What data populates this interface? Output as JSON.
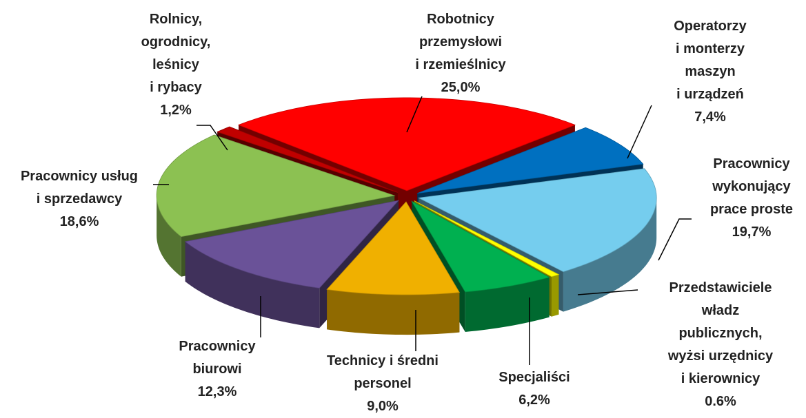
{
  "chart_data": {
    "type": "pie",
    "categories": [
      "Robotnicy\nprzemysłowi\ni rzemieślnicy",
      "Operatorzy\ni monterzy\nmaszyn\ni urządzeń",
      "Pracownicy\nwykonujący\nprace proste",
      "Przedstawiciele\nwładz\npublicznych,\nwyżsi urzędnicy\ni kierownicy",
      "Specjaliści",
      "Technicy i średni\npersonel",
      "Pracownicy\nbiurowi",
      "Pracownicy usług\ni sprzedawcy",
      "Rolnicy,\nogrodnicy,\nleśnicy\ni rybacy"
    ],
    "values": [
      25.0,
      7.4,
      19.7,
      0.6,
      6.2,
      9.0,
      12.3,
      18.6,
      1.2
    ],
    "value_labels": [
      "25,0%",
      "7,4%",
      "19,7%",
      "0.6%",
      "6,2%",
      "9,0%",
      "12,3%",
      "18,6%",
      "1,2%"
    ],
    "colors": [
      "#ff0000",
      "#0070c0",
      "#75cdee",
      "#ffff00",
      "#00b050",
      "#f0b000",
      "#6a5298",
      "#8cc152",
      "#c00000"
    ]
  }
}
